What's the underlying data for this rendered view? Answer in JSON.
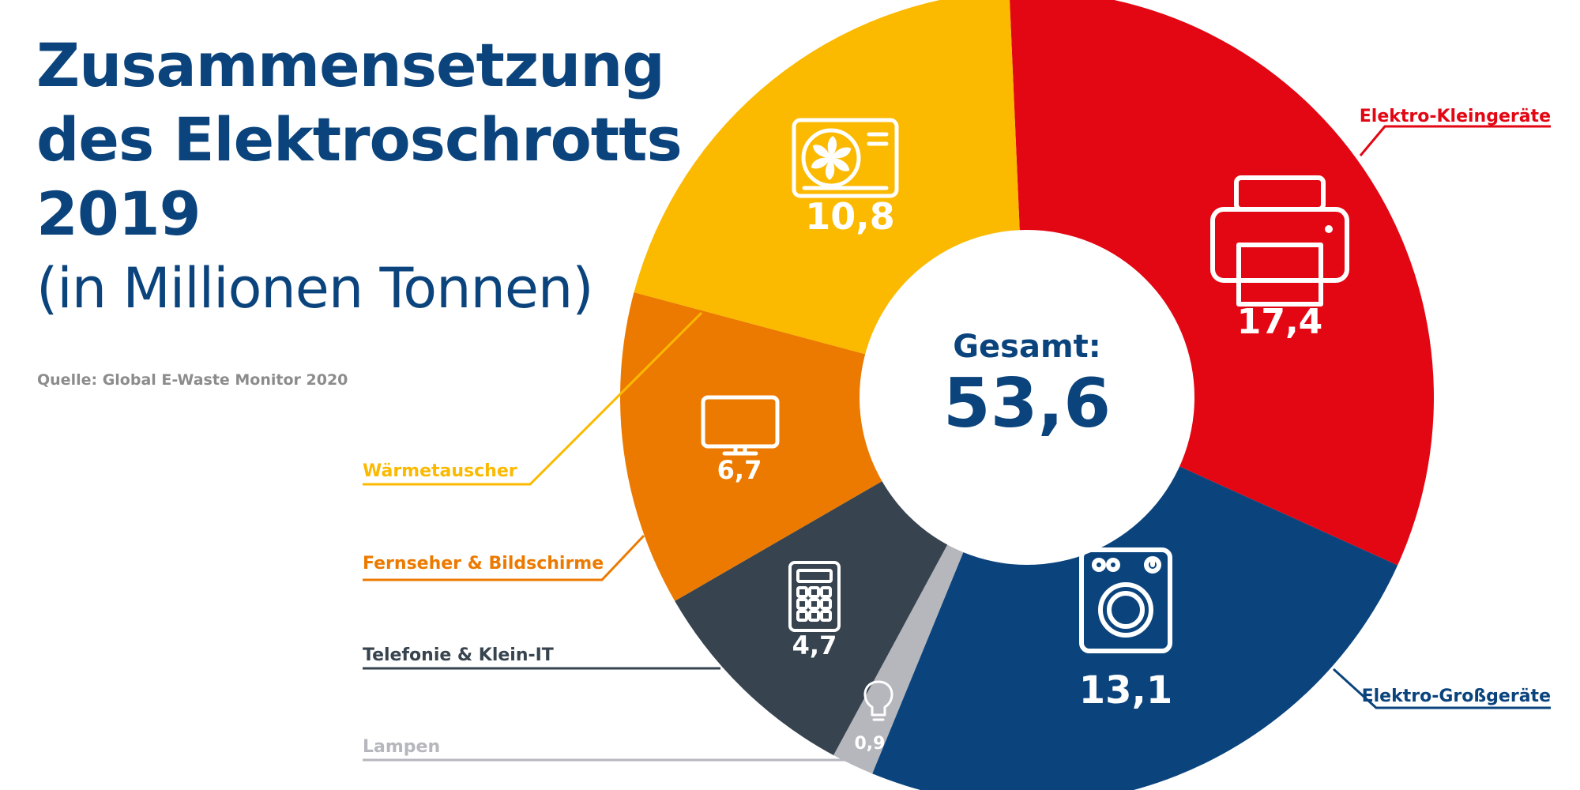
{
  "title_lines": [
    "Zusammensetzung",
    "des Elektroschrotts",
    "2019"
  ],
  "subtitle": "(in Millionen Tonnen)",
  "source": "Quelle: Global E-Waste Monitor 2020",
  "center": {
    "label": "Gesamt:",
    "value": "53,6"
  },
  "chart_data": {
    "type": "pie",
    "title": "Zusammensetzung des Elektroschrotts 2019",
    "subtitle": "(in Millionen Tonnen)",
    "total_label": "Gesamt:",
    "total": 53.6,
    "total_display": "53,6",
    "start_angle_deg": -2.5,
    "slices": [
      {
        "name": "Elektro-Kleingeräte",
        "value": 17.4,
        "display": "17,4",
        "color": "#e30613",
        "icon": "printer-icon"
      },
      {
        "name": "Elektro-Großgeräte",
        "value": 13.1,
        "display": "13,1",
        "color": "#0b447d",
        "icon": "washing-machine-icon"
      },
      {
        "name": "Lampen",
        "value": 0.9,
        "display": "0,9",
        "color": "#b6b6bd",
        "icon": "lightbulb-icon"
      },
      {
        "name": "Telefonie & Klein-IT",
        "value": 4.7,
        "display": "4,7",
        "color": "#37444f",
        "icon": "calculator-icon"
      },
      {
        "name": "Fernseher & Bildschirme",
        "value": 6.7,
        "display": "6,7",
        "color": "#ec7a00",
        "icon": "monitor-icon"
      },
      {
        "name": "Wärmetauscher",
        "value": 10.8,
        "display": "10,8",
        "color": "#fbb900",
        "icon": "air-conditioner-icon"
      }
    ],
    "legend_placement": "outside with leader lines"
  }
}
